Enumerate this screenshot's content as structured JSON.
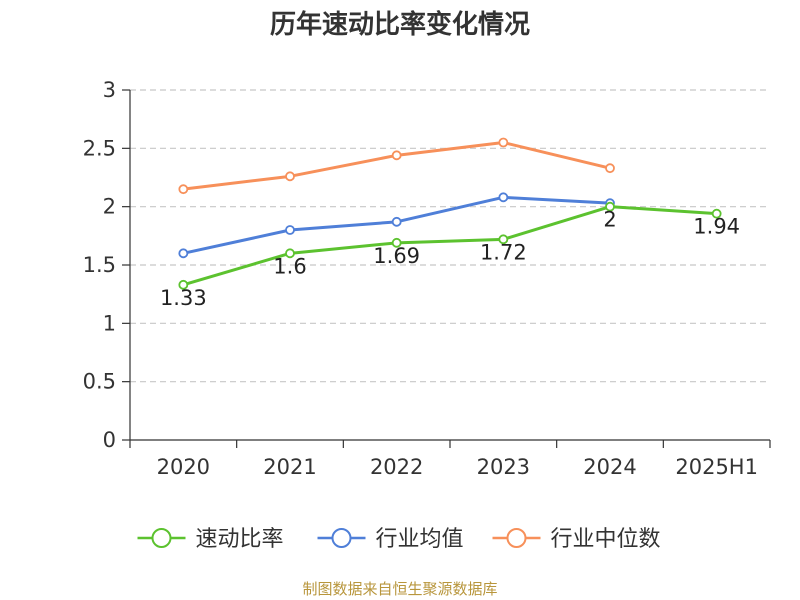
{
  "chart_data": {
    "type": "line",
    "title": "历年速动比率变化情况",
    "categories": [
      "2020",
      "2021",
      "2022",
      "2023",
      "2024",
      "2025H1"
    ],
    "ylim": [
      0,
      3
    ],
    "yticks": [
      "0",
      "0.5",
      "1",
      "1.5",
      "2",
      "2.5",
      "3"
    ],
    "grid": true,
    "legend_position": "bottom",
    "series": [
      {
        "name": "速动比率",
        "color": "#5cc22f",
        "values": [
          1.33,
          1.6,
          1.69,
          1.72,
          2.0,
          1.94
        ],
        "labels": [
          "1.33",
          "1.6",
          "1.69",
          "1.72",
          "2",
          "1.94"
        ]
      },
      {
        "name": "行业均值",
        "color": "#4f7fd8",
        "values": [
          1.6,
          1.8,
          1.87,
          2.08,
          2.03,
          null
        ]
      },
      {
        "name": "行业中位数",
        "color": "#f7905a",
        "values": [
          2.15,
          2.26,
          2.44,
          2.55,
          2.33,
          null
        ]
      }
    ],
    "source": "制图数据来自恒生聚源数据库"
  }
}
